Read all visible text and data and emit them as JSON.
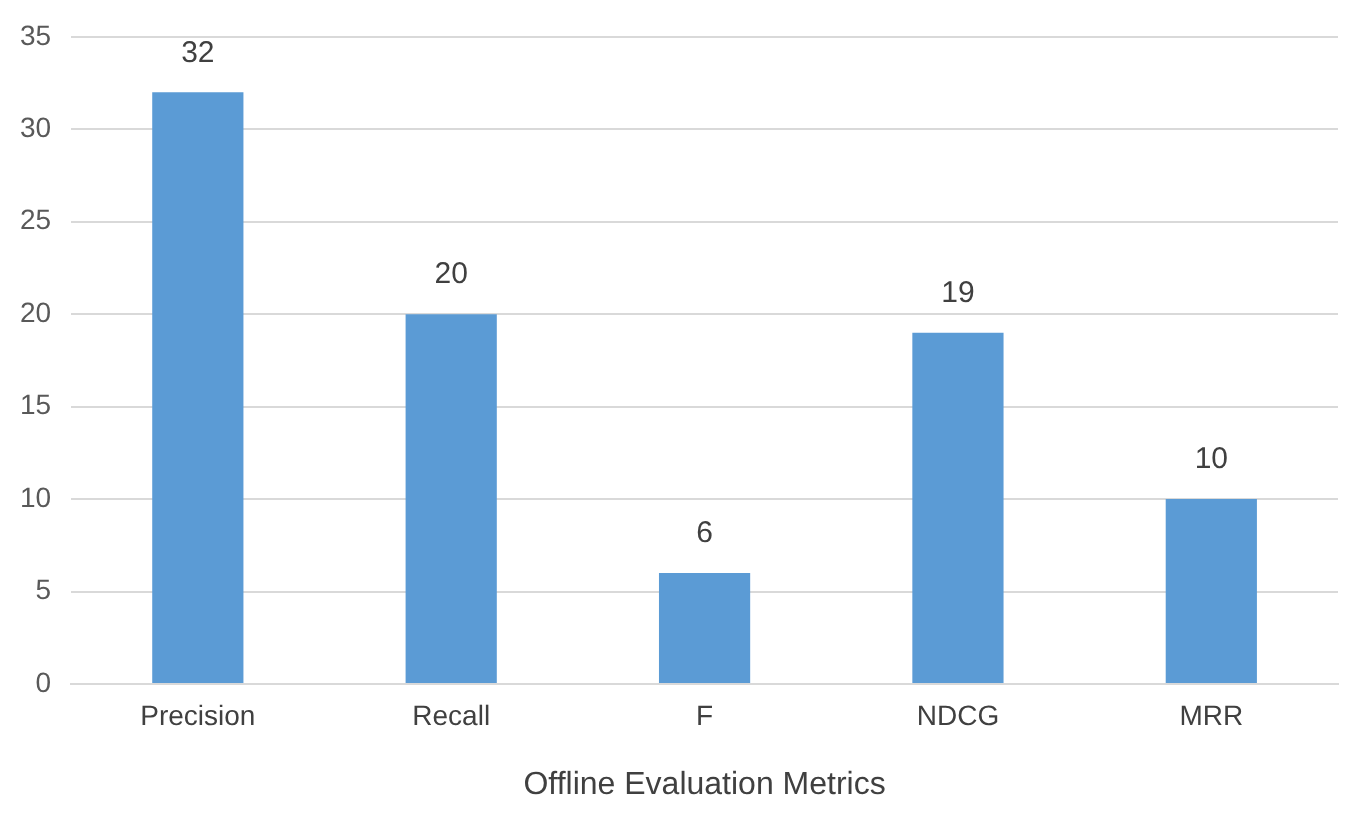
{
  "chart_data": {
    "type": "bar",
    "xlabel": "Offline Evaluation Metrics",
    "categories": [
      "Precision",
      "Recall",
      "F",
      "NDCG",
      "MRR"
    ],
    "values": [
      32,
      20,
      6,
      19,
      10
    ],
    "color": "#5b9bd5",
    "ylim": [
      0,
      35
    ],
    "yticks": [
      0,
      5,
      10,
      15,
      20,
      25,
      30,
      35
    ],
    "grid": "y",
    "data_labels": true,
    "legend": false
  }
}
